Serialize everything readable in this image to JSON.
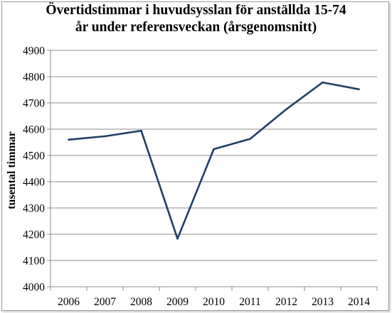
{
  "chart_data": {
    "type": "line",
    "title_lines": [
      "Övertidstimmar i huvudsysslan för anställda 15-74",
      "år under referensveckan (årsgenomsnitt)"
    ],
    "xlabel": "",
    "ylabel": "tusental timmar",
    "categories": [
      "2006",
      "2007",
      "2008",
      "2009",
      "2010",
      "2011",
      "2012",
      "2013",
      "2014"
    ],
    "series": [
      {
        "values": [
          4560,
          4573,
          4594,
          4183,
          4524,
          4563,
          4676,
          4778,
          4752
        ]
      }
    ],
    "ylim": [
      4000,
      4900
    ],
    "yticks": [
      "4000",
      "4100",
      "4200",
      "4300",
      "4400",
      "4500",
      "4600",
      "4700",
      "4800",
      "4900"
    ],
    "grid": true,
    "legend": "none",
    "colors": {
      "line": "#1f3f66",
      "grid": "#8c8c8c",
      "axis": "#8c8c8c"
    }
  }
}
